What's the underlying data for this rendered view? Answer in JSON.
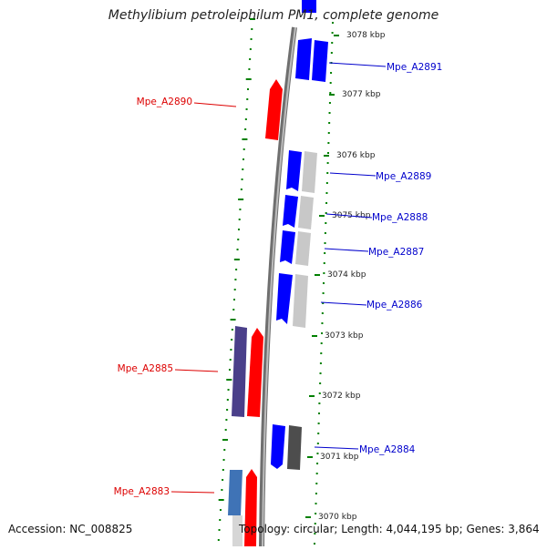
{
  "title": "Methylibium petroleiphilum PM1, complete genome",
  "footer": {
    "accession": "Accession: NC_008825",
    "summary": "Topology: circular; Length: 4,044,195 bp; Genes: 3,864"
  },
  "colors": {
    "forward_gene": "#0000ff",
    "reverse_gene": "#ff0000",
    "label_right": "#0000cc",
    "label_left": "#dd0000",
    "tick": "#008000",
    "backbone": "#808080"
  },
  "scale_labels": [
    "3078 kbp",
    "3077 kbp",
    "3076 kbp",
    "3075 kbp",
    "3074 kbp",
    "3073 kbp",
    "3072 kbp",
    "3071 kbp",
    "3070 kbp"
  ],
  "gene_labels_right": [
    "Mpe_A2891",
    "Mpe_A2889",
    "Mpe_A2888",
    "Mpe_A2887",
    "Mpe_A2886",
    "Mpe_A2884"
  ],
  "gene_labels_left": [
    "Mpe_A2890",
    "Mpe_A2885",
    "Mpe_A2883"
  ]
}
